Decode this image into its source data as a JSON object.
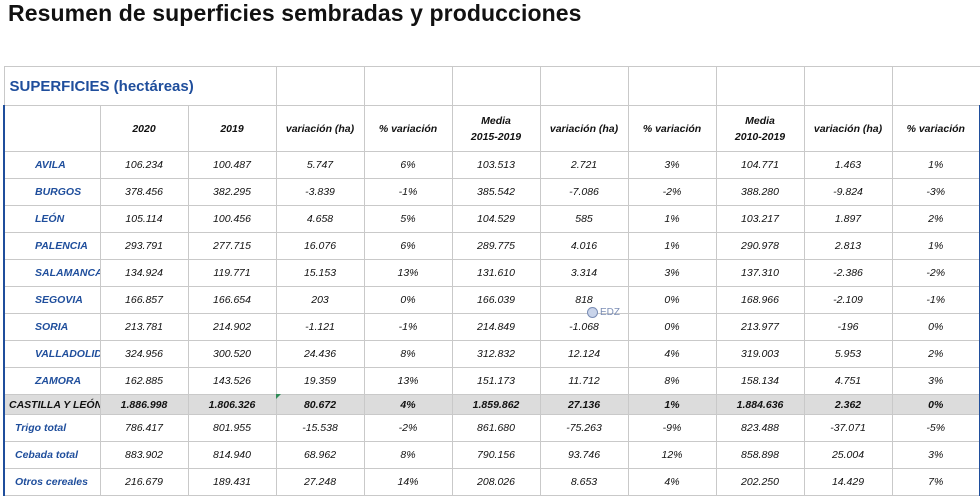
{
  "title": "Resumen de superficies sembradas y producciones",
  "section_title": "SUPERFICIES (hectáreas)",
  "headers": [
    {
      "l1": "",
      "l2": ""
    },
    {
      "l1": "2020",
      "l2": ""
    },
    {
      "l1": "2019",
      "l2": ""
    },
    {
      "l1": "variación (ha)",
      "l2": ""
    },
    {
      "l1": "% variación",
      "l2": ""
    },
    {
      "l1": "Media",
      "l2": "2015-2019"
    },
    {
      "l1": "variación (ha)",
      "l2": ""
    },
    {
      "l1": "% variación",
      "l2": ""
    },
    {
      "l1": "Media",
      "l2": "2010-2019"
    },
    {
      "l1": "variación (ha)",
      "l2": ""
    },
    {
      "l1": "% variación",
      "l2": ""
    }
  ],
  "rows": [
    [
      "AVILA",
      "106.234",
      "100.487",
      "5.747",
      "6%",
      "103.513",
      "2.721",
      "3%",
      "104.771",
      "1.463",
      "1%"
    ],
    [
      "BURGOS",
      "378.456",
      "382.295",
      "-3.839",
      "-1%",
      "385.542",
      "-7.086",
      "-2%",
      "388.280",
      "-9.824",
      "-3%"
    ],
    [
      "LEÓN",
      "105.114",
      "100.456",
      "4.658",
      "5%",
      "104.529",
      "585",
      "1%",
      "103.217",
      "1.897",
      "2%"
    ],
    [
      "PALENCIA",
      "293.791",
      "277.715",
      "16.076",
      "6%",
      "289.775",
      "4.016",
      "1%",
      "290.978",
      "2.813",
      "1%"
    ],
    [
      "SALAMANCA",
      "134.924",
      "119.771",
      "15.153",
      "13%",
      "131.610",
      "3.314",
      "3%",
      "137.310",
      "-2.386",
      "-2%"
    ],
    [
      "SEGOVIA",
      "166.857",
      "166.654",
      "203",
      "0%",
      "166.039",
      "818",
      "0%",
      "168.966",
      "-2.109",
      "-1%"
    ],
    [
      "SORIA",
      "213.781",
      "214.902",
      "-1.121",
      "-1%",
      "214.849",
      "-1.068",
      "0%",
      "213.977",
      "-196",
      "0%"
    ],
    [
      "VALLADOLID",
      "324.956",
      "300.520",
      "24.436",
      "8%",
      "312.832",
      "12.124",
      "4%",
      "319.003",
      "5.953",
      "2%"
    ],
    [
      "ZAMORA",
      "162.885",
      "143.526",
      "19.359",
      "13%",
      "151.173",
      "11.712",
      "8%",
      "158.134",
      "4.751",
      "3%"
    ]
  ],
  "total_row": [
    "CASTILLA Y LEÓN",
    "1.886.998",
    "1.806.326",
    "80.672",
    "4%",
    "1.859.862",
    "27.136",
    "1%",
    "1.884.636",
    "2.362",
    "0%"
  ],
  "sub_rows": [
    [
      "Trigo total",
      "786.417",
      "801.955",
      "-15.538",
      "-2%",
      "861.680",
      "-75.263",
      "-9%",
      "823.488",
      "-37.071",
      "-5%"
    ],
    [
      "Cebada total",
      "883.902",
      "814.940",
      "68.962",
      "8%",
      "790.156",
      "93.746",
      "12%",
      "858.898",
      "25.004",
      "3%"
    ],
    [
      "Otros cereales",
      "216.679",
      "189.431",
      "27.248",
      "14%",
      "208.026",
      "8.653",
      "4%",
      "202.250",
      "14.429",
      "7%"
    ]
  ],
  "watermark": "EDZ"
}
